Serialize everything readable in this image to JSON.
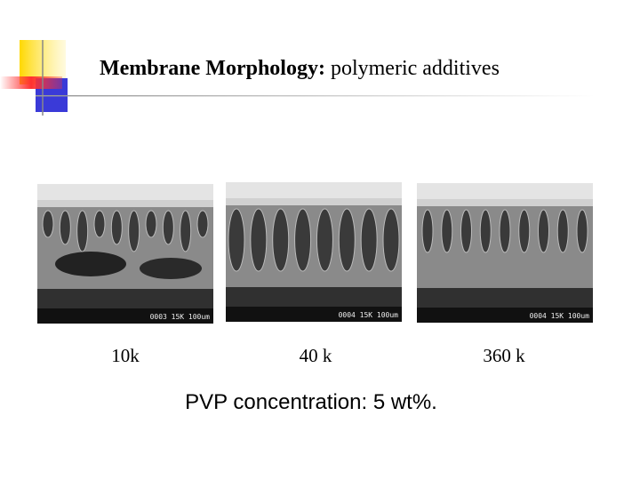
{
  "header": {
    "title_bold": "Membrane Morphology:",
    "title_rest": "polymeric additives"
  },
  "images": [
    {
      "scale_text": "0003 15K 100um",
      "label": "10k"
    },
    {
      "scale_text": "0004 15K 100um",
      "label": "40 k"
    },
    {
      "scale_text": "0004 15K 100um",
      "label": "360 k"
    }
  ],
  "caption": "PVP concentration: 5 wt%."
}
